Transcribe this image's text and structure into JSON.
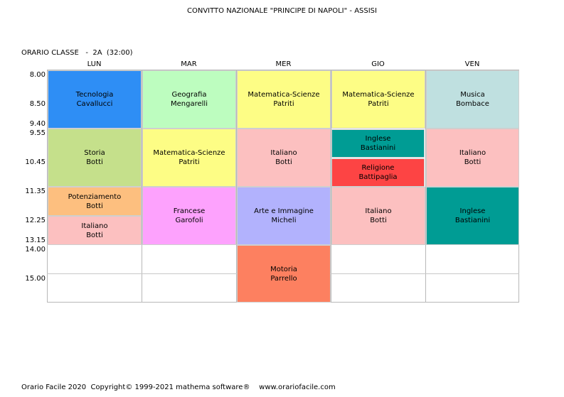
{
  "header": {
    "school": "CONVITTO NAZIONALE \"PRINCIPE DI NAPOLI\" - ASSISI",
    "schedule_title": "ORARIO CLASSE   -  2A  (32:00)"
  },
  "days": [
    "LUN",
    "MAR",
    "MER",
    "GIO",
    "VEN"
  ],
  "times": [
    "8.00",
    "8.50",
    "9.40",
    "9.55",
    "10.45",
    "11.35",
    "12.25",
    "13.15",
    "14.00",
    "15.00"
  ],
  "lessons": {
    "lun": [
      {
        "subject": "Tecnologia",
        "teacher": "Cavallucci",
        "color": "#2e8ef5"
      },
      {
        "subject": "Storia",
        "teacher": "Botti",
        "color": "#c5e08b"
      },
      {
        "subject": "Potenziamento",
        "teacher": "Botti",
        "color": "#fdbf7f"
      },
      {
        "subject": "Italiano",
        "teacher": "Botti",
        "color": "#fcc0c0"
      }
    ],
    "mar": [
      {
        "subject": "Geografia",
        "teacher": "Mengarelli",
        "color": "#bdfdbf"
      },
      {
        "subject": "Matematica-Scienze",
        "teacher": "Patriti",
        "color": "#fdfd85"
      },
      {
        "subject": "Francese",
        "teacher": "Garofoli",
        "color": "#fda2fd"
      }
    ],
    "mer": [
      {
        "subject": "Matematica-Scienze",
        "teacher": "Patriti",
        "color": "#fdfd85"
      },
      {
        "subject": "Italiano",
        "teacher": "Botti",
        "color": "#fcc0c0"
      },
      {
        "subject": "Arte e Immagine",
        "teacher": "Micheli",
        "color": "#b2b2fd"
      },
      {
        "subject": "Motoria",
        "teacher": "Parrello",
        "color": "#fd8060"
      }
    ],
    "gio": [
      {
        "subject": "Matematica-Scienze",
        "teacher": "Patriti",
        "color": "#fdfd85"
      },
      {
        "subject": "Inglese",
        "teacher": "Bastianini",
        "color": "#009c94"
      },
      {
        "subject": "Religione",
        "teacher": "Battipaglia",
        "color": "#fd4444"
      },
      {
        "subject": "Italiano",
        "teacher": "Botti",
        "color": "#fcc0c0"
      }
    ],
    "ven": [
      {
        "subject": "Musica",
        "teacher": "Bombace",
        "color": "#bfe0e0"
      },
      {
        "subject": "Italiano",
        "teacher": "Botti",
        "color": "#fcc0c0"
      },
      {
        "subject": "Inglese",
        "teacher": "Bastianini",
        "color": "#009c94"
      }
    ]
  },
  "footer": {
    "text": "Orario Facile 2020  Copyright© 1999-2021 mathema software®    www.orariofacile.com"
  }
}
